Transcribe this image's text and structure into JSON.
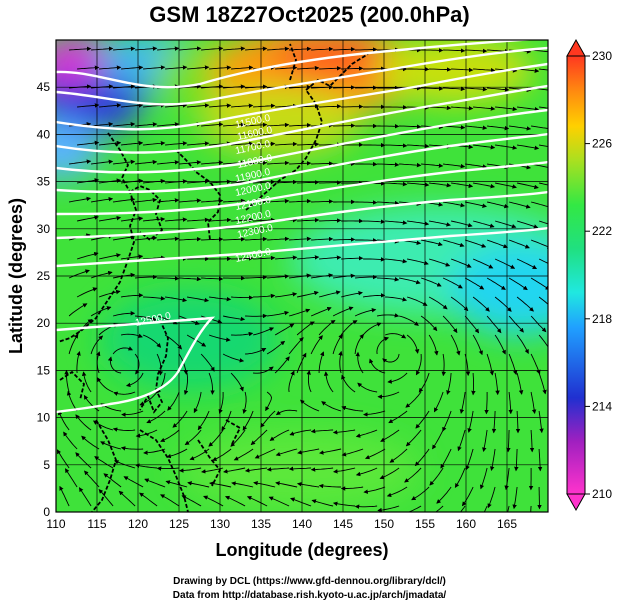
{
  "title": "GSM 18Z27Oct2025 (200.0hPa)",
  "xlabel": "Longitude (degrees)",
  "ylabel": "Latitude  (degrees)",
  "credit_line1": "Drawing by DCL (https://www.gfd-dennou.org/library/dcl/)",
  "credit_line2": "Data from http://database.rish.kyoto-u.ac.jp/arch/jmadata/",
  "colorbar": {
    "ticks": [
      "210",
      "214",
      "218",
      "222",
      "226",
      "230"
    ],
    "colors": [
      "#ff33cc",
      "#2030d0",
      "#20d8ff",
      "#33e844",
      "#ffd000",
      "#ff3820"
    ]
  },
  "chart_data": {
    "type": "heatmap",
    "title": "GSM 18Z27Oct2025 (200.0hPa)",
    "xlabel": "Longitude (degrees)",
    "ylabel": "Latitude  (degrees)",
    "xlim": [
      110,
      170
    ],
    "ylim": [
      0,
      50
    ],
    "xticks": [
      "110",
      "115",
      "120",
      "125",
      "130",
      "135",
      "140",
      "145",
      "150",
      "155",
      "160",
      "165"
    ],
    "yticks": [
      "0",
      "5",
      "10",
      "15",
      "20",
      "25",
      "30",
      "35",
      "40",
      "45"
    ],
    "color_range": [
      210,
      230
    ],
    "contour_labels": [
      "11500.0",
      "11600.0",
      "11700.0",
      "11800.0",
      "11900.0",
      "12000.0",
      "12100.0",
      "12200.0",
      "12300.0",
      "12400.0",
      "12500.0"
    ],
    "features": [
      {
        "name": "warm-core",
        "lon": 140,
        "lat": 47,
        "value": 229
      },
      {
        "name": "cold-core",
        "lon": 115,
        "lat": 44,
        "value": 211
      },
      {
        "name": "cool-band",
        "lon": 163,
        "lat": 25,
        "value": 218
      },
      {
        "name": "vortex-east",
        "lon": 151,
        "lat": 17,
        "value": 222
      },
      {
        "name": "vortex-west",
        "lon": 118,
        "lat": 16,
        "value": 222
      }
    ]
  }
}
